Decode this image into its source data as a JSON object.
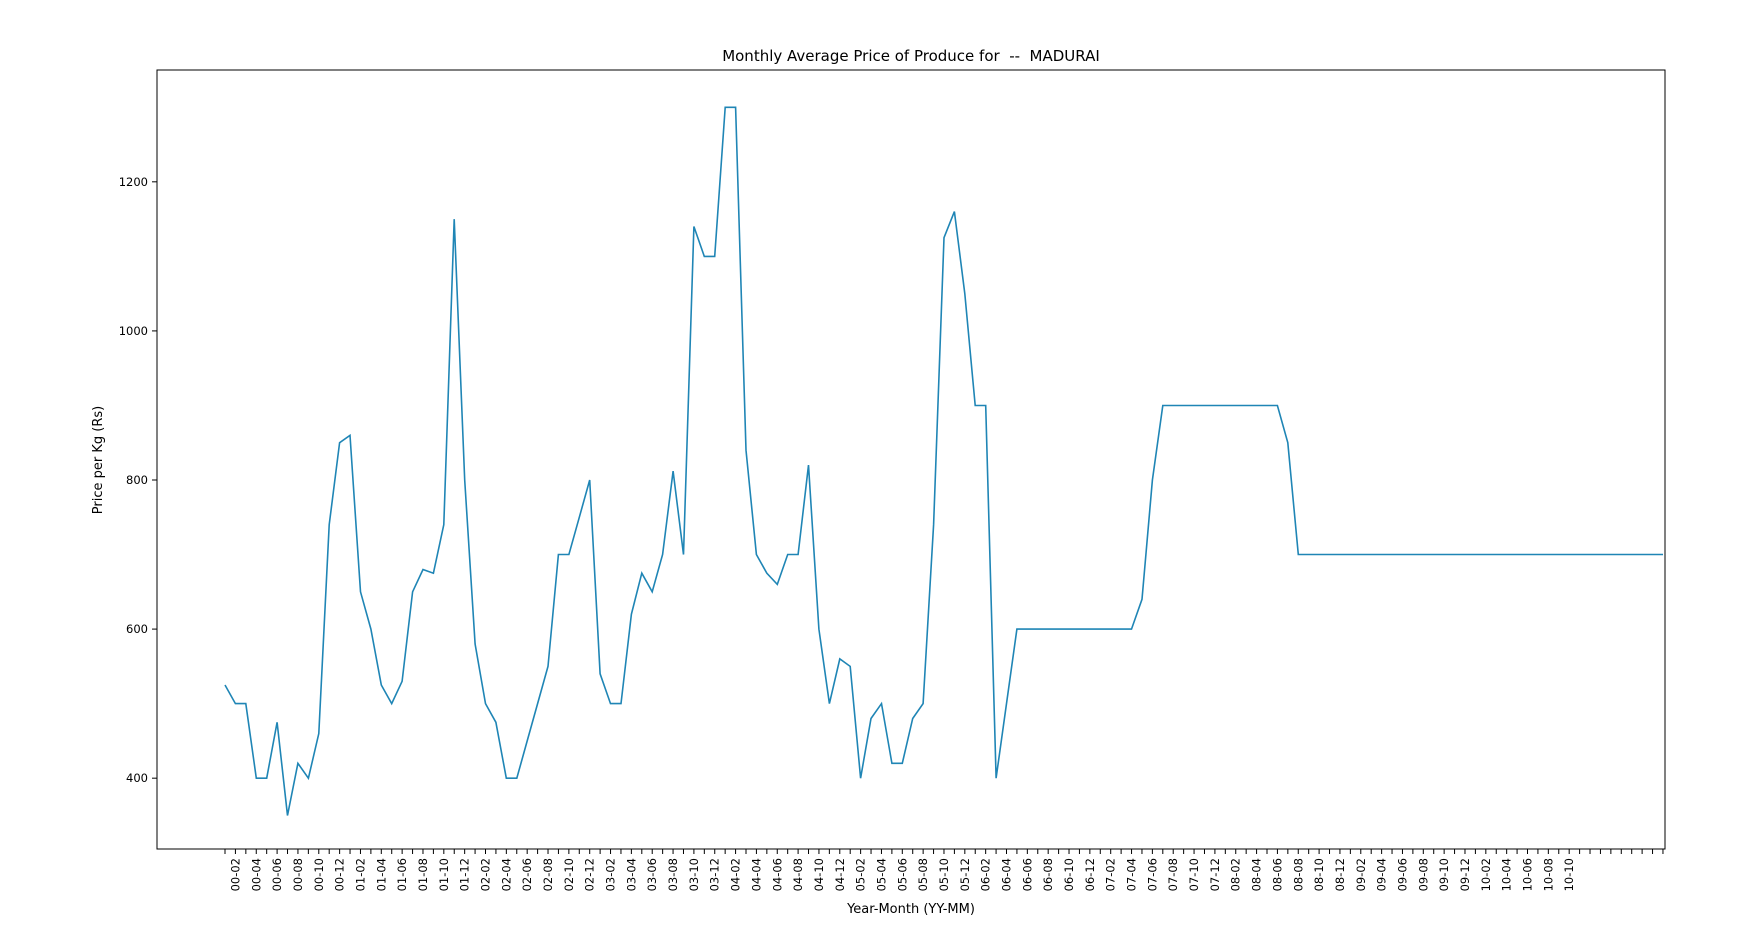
{
  "chart_data": {
    "type": "line",
    "title": "Monthly Average Price of Produce for  --  MADURAI",
    "xlabel": "Year-Month (YY-MM)",
    "ylabel": "Price per Kg (Rs)",
    "ylim": [
      305,
      1350
    ],
    "yticks": [
      400,
      600,
      800,
      1000,
      1200
    ],
    "x_tick_labels": [
      "00-02",
      "00-04",
      "00-06",
      "00-08",
      "00-10",
      "00-12",
      "01-02",
      "01-04",
      "01-06",
      "01-08",
      "01-10",
      "01-12",
      "02-02",
      "02-04",
      "02-06",
      "02-08",
      "02-10",
      "02-12",
      "03-02",
      "03-04",
      "03-06",
      "03-08",
      "03-10",
      "03-12",
      "04-02",
      "04-04",
      "04-06",
      "04-08",
      "04-10",
      "04-12",
      "05-02",
      "05-04",
      "05-06",
      "05-08",
      "05-10",
      "05-12",
      "06-02",
      "06-04",
      "06-06",
      "06-08",
      "06-10",
      "06-12",
      "07-02",
      "07-04",
      "07-06",
      "07-08",
      "07-10",
      "07-12",
      "08-02",
      "08-04",
      "08-06",
      "08-08",
      "08-10",
      "08-12",
      "09-02",
      "09-04",
      "09-06",
      "09-08",
      "09-10",
      "09-12",
      "10-02",
      "10-04",
      "10-06",
      "10-08",
      "10-10"
    ],
    "grid": false,
    "line_color": "#1f85b5",
    "series": [
      {
        "values": [
          525,
          500,
          500,
          400,
          400,
          475,
          350,
          420,
          400,
          460,
          740,
          850,
          860,
          650,
          600,
          525,
          500,
          530,
          650,
          680,
          675,
          740,
          1150,
          800,
          580,
          500,
          475,
          400,
          400,
          450,
          500,
          550,
          700,
          700,
          750,
          800,
          540,
          500,
          500,
          620,
          675,
          650,
          700,
          812,
          700,
          1140,
          1100,
          1100,
          1300,
          1300,
          840,
          700,
          675,
          660,
          700,
          700,
          820,
          600,
          500,
          560,
          550,
          400,
          480,
          500,
          420,
          420,
          480,
          500,
          740,
          1125,
          1160,
          1050,
          900,
          900,
          400,
          500,
          600,
          600,
          600,
          600,
          600,
          600,
          600,
          600,
          600,
          600,
          600,
          600,
          640,
          800,
          900,
          900,
          900,
          900,
          900,
          900,
          900,
          900,
          900,
          900,
          900,
          900,
          850,
          700,
          700,
          700,
          700,
          700,
          700,
          700,
          700,
          700,
          700,
          700,
          700,
          700,
          700,
          700,
          700,
          700,
          700,
          700,
          700,
          700,
          700,
          700,
          700,
          700,
          700,
          700,
          700,
          700,
          700,
          700,
          700,
          700,
          700,
          700,
          700
        ]
      }
    ]
  }
}
